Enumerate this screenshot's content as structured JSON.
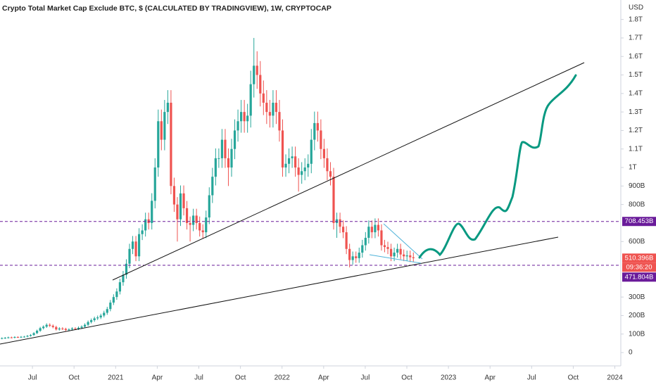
{
  "chart_data": {
    "type": "candlestick",
    "title": "Crypto Total Market Cap Exclude BTC, $ (CALCULATED BY TRADINGVIEW), 1W, CRYPTOCAP",
    "currency_label": "USD",
    "timer": "09:36:20",
    "up_color": "#26a69a",
    "down_color": "#ef5350",
    "grid": false,
    "xlim": [
      3.66,
      48.43
    ],
    "xticks": [
      {
        "value": 6,
        "label": "Jul"
      },
      {
        "value": 9,
        "label": "Oct"
      },
      {
        "value": 12,
        "label": "2021"
      },
      {
        "value": 15,
        "label": "Apr"
      },
      {
        "value": 18,
        "label": "Jul"
      },
      {
        "value": 21,
        "label": "Oct"
      },
      {
        "value": 24,
        "label": "2022"
      },
      {
        "value": 27,
        "label": "Apr"
      },
      {
        "value": 30,
        "label": "Jul"
      },
      {
        "value": 33,
        "label": "Oct"
      },
      {
        "value": 36,
        "label": "2023"
      },
      {
        "value": 39,
        "label": "Apr"
      },
      {
        "value": 42,
        "label": "Jul"
      },
      {
        "value": 45,
        "label": "Oct"
      },
      {
        "value": 48,
        "label": "2024"
      }
    ],
    "ylim": [
      -72,
      1905
    ],
    "yticks": [
      0,
      {
        "value": 100,
        "label": "100B"
      },
      {
        "value": 200,
        "label": "200B"
      },
      {
        "value": 300,
        "label": "300B"
      },
      {
        "value": 600,
        "label": "600B"
      },
      {
        "value": 800,
        "label": "800B"
      },
      {
        "value": 900,
        "label": "900B"
      },
      {
        "value": 1000,
        "label": "1T"
      },
      {
        "value": 1100,
        "label": "1.1T"
      },
      {
        "value": 1200,
        "label": "1.2T"
      },
      {
        "value": 1300,
        "label": "1.3T"
      },
      {
        "value": 1400,
        "label": "1.4T"
      },
      {
        "value": 1500,
        "label": "1.5T"
      },
      {
        "value": 1600,
        "label": "1.6T"
      },
      {
        "value": 1700,
        "label": "1.7T"
      },
      {
        "value": 1800,
        "label": "1.8T"
      }
    ],
    "price_tags": [
      {
        "value": 708.453,
        "label": "708.453B",
        "color": "#6a1b9a",
        "dashed": true
      },
      {
        "value": 510.396,
        "label": "510.396B",
        "color": "#ef5350",
        "dashed": false
      },
      {
        "value": 471.804,
        "label": "471.804B",
        "color": "#6a1b9a",
        "dashed": true
      }
    ],
    "x": [
      3.8,
      4.03,
      4.26,
      4.49,
      4.72,
      4.95,
      5.18,
      5.41,
      5.64,
      5.87,
      6.1,
      6.33,
      6.56,
      6.79,
      7.02,
      7.25,
      7.48,
      7.71,
      7.94,
      8.17,
      8.4,
      8.63,
      8.86,
      9.09,
      9.32,
      9.55,
      9.78,
      10.01,
      10.24,
      10.47,
      10.7,
      10.93,
      11.16,
      11.39,
      11.62,
      11.85,
      12.08,
      12.31,
      12.54,
      12.77,
      13,
      13.23,
      13.46,
      13.69,
      13.92,
      14.15,
      14.38,
      14.61,
      14.84,
      15.07,
      15.3,
      15.53,
      15.76,
      15.99,
      16.22,
      16.45,
      16.68,
      16.91,
      17.14,
      17.37,
      17.6,
      17.83,
      18.06,
      18.29,
      18.52,
      18.75,
      18.98,
      19.21,
      19.44,
      19.67,
      19.9,
      20.13,
      20.36,
      20.59,
      20.82,
      21.05,
      21.28,
      21.51,
      21.74,
      21.97,
      22.2,
      22.43,
      22.66,
      22.89,
      23.12,
      23.35,
      23.58,
      23.81,
      24.04,
      24.27,
      24.5,
      24.73,
      24.96,
      25.19,
      25.42,
      25.65,
      25.88,
      26.11,
      26.34,
      26.57,
      26.8,
      27.03,
      27.26,
      27.49,
      27.72,
      27.95,
      28.18,
      28.41,
      28.64,
      28.87,
      29.1,
      29.33,
      29.56,
      29.79,
      30.02,
      30.25,
      30.48,
      30.71,
      30.94,
      31.17,
      31.4,
      31.63,
      31.86,
      32.09,
      32.32,
      32.55,
      32.78,
      33.01,
      33.24,
      33.47
    ],
    "open": [
      76,
      78,
      80,
      82,
      81,
      84,
      83,
      85,
      86,
      90,
      95,
      105,
      118,
      132,
      140,
      150,
      145,
      138,
      125,
      130,
      128,
      122,
      125,
      130,
      128,
      134,
      140,
      150,
      165,
      175,
      185,
      190,
      200,
      215,
      235,
      270,
      300,
      330,
      380,
      420,
      480,
      560,
      600,
      520,
      640,
      660,
      720,
      700,
      820,
      1000,
      1250,
      1150,
      1300,
      1350,
      900,
      800,
      720,
      860,
      780,
      700,
      690,
      740,
      700,
      660,
      650,
      730,
      850,
      950,
      1050,
      1050,
      1150,
      1050,
      1000,
      1100,
      1200,
      1250,
      1300,
      1250,
      1280,
      1450,
      1550,
      1500,
      1400,
      1350,
      1300,
      1280,
      1350,
      1300,
      1200,
      1000,
      1020,
      1050,
      1060,
      1000,
      960,
      980,
      1000,
      1020,
      1150,
      1240,
      1200,
      1100,
      1050,
      980,
      950,
      700,
      720,
      680,
      650,
      560,
      500,
      520,
      510,
      540,
      580,
      620,
      680,
      650,
      690,
      660,
      580,
      570,
      560,
      520,
      540,
      560,
      530,
      520,
      525,
      515
    ],
    "high": [
      82,
      84,
      86,
      86,
      88,
      88,
      89,
      90,
      95,
      100,
      110,
      124,
      139,
      147,
      158,
      158,
      152,
      145,
      137,
      137,
      134,
      131,
      137,
      137,
      141,
      147,
      158,
      173,
      184,
      194,
      200,
      210,
      226,
      247,
      284,
      315,
      347,
      399,
      441,
      504,
      588,
      630,
      630,
      672,
      693,
      756,
      756,
      861,
      1050,
      1313,
      1313,
      1365,
      1418,
      1418,
      945,
      840,
      903,
      903,
      819,
      735,
      777,
      777,
      735,
      693,
      767,
      893,
      998,
      1103,
      1103,
      1208,
      1208,
      1103,
      1155,
      1260,
      1313,
      1365,
      1365,
      1344,
      1523,
      1700,
      1628,
      1575,
      1470,
      1418,
      1365,
      1418,
      1418,
      1365,
      1260,
      1071,
      1103,
      1113,
      1113,
      1050,
      1029,
      1050,
      1071,
      1208,
      1302,
      1302,
      1260,
      1155,
      1103,
      1029,
      998,
      756,
      756,
      714,
      683,
      588,
      546,
      546,
      567,
      609,
      651,
      714,
      714,
      725,
      725,
      693,
      609,
      599,
      588,
      567,
      588,
      588,
      557,
      551,
      551,
      541
    ],
    "low": [
      72,
      74,
      76,
      77,
      77,
      79,
      79,
      81,
      82,
      86,
      90,
      100,
      112,
      125,
      133,
      138,
      131,
      119,
      119,
      122,
      116,
      116,
      119,
      122,
      122,
      127,
      133,
      143,
      157,
      166,
      176,
      181,
      190,
      204,
      223,
      257,
      285,
      314,
      361,
      399,
      456,
      532,
      494,
      494,
      608,
      627,
      665,
      665,
      779,
      950,
      1093,
      1093,
      1235,
      855,
      760,
      600,
      684,
      741,
      665,
      600,
      656,
      665,
      627,
      618,
      618,
      694,
      808,
      903,
      998,
      998,
      998,
      900,
      950,
      1045,
      1140,
      1188,
      1188,
      1188,
      1216,
      1378,
      1425,
      1330,
      1283,
      1235,
      1216,
      1216,
      1235,
      1140,
      950,
      950,
      969,
      998,
      950,
      870,
      912,
      931,
      950,
      969,
      1093,
      1140,
      1045,
      998,
      931,
      903,
      665,
      620,
      646,
      618,
      532,
      460,
      475,
      485,
      485,
      513,
      551,
      589,
      618,
      618,
      627,
      551,
      542,
      532,
      494,
      494,
      513,
      504,
      494,
      494,
      489,
      490
    ],
    "close": [
      78,
      80,
      82,
      81,
      84,
      83,
      85,
      86,
      90,
      95,
      105,
      118,
      132,
      140,
      150,
      145,
      138,
      125,
      130,
      128,
      122,
      125,
      130,
      128,
      134,
      140,
      150,
      165,
      175,
      185,
      190,
      200,
      215,
      235,
      270,
      300,
      330,
      380,
      420,
      480,
      560,
      600,
      520,
      640,
      660,
      720,
      700,
      820,
      1000,
      1250,
      1150,
      1300,
      1350,
      900,
      800,
      720,
      860,
      780,
      700,
      690,
      740,
      700,
      660,
      650,
      730,
      850,
      950,
      1050,
      1050,
      1150,
      1050,
      1000,
      1100,
      1200,
      1250,
      1300,
      1250,
      1280,
      1450,
      1550,
      1500,
      1400,
      1350,
      1300,
      1280,
      1350,
      1300,
      1200,
      1000,
      1020,
      1050,
      1060,
      1000,
      960,
      980,
      1000,
      1020,
      1150,
      1240,
      1200,
      1100,
      1050,
      980,
      950,
      700,
      720,
      680,
      650,
      560,
      500,
      520,
      510,
      540,
      580,
      620,
      680,
      650,
      690,
      660,
      580,
      570,
      560,
      520,
      540,
      560,
      530,
      520,
      525,
      515,
      510
    ]
  }
}
